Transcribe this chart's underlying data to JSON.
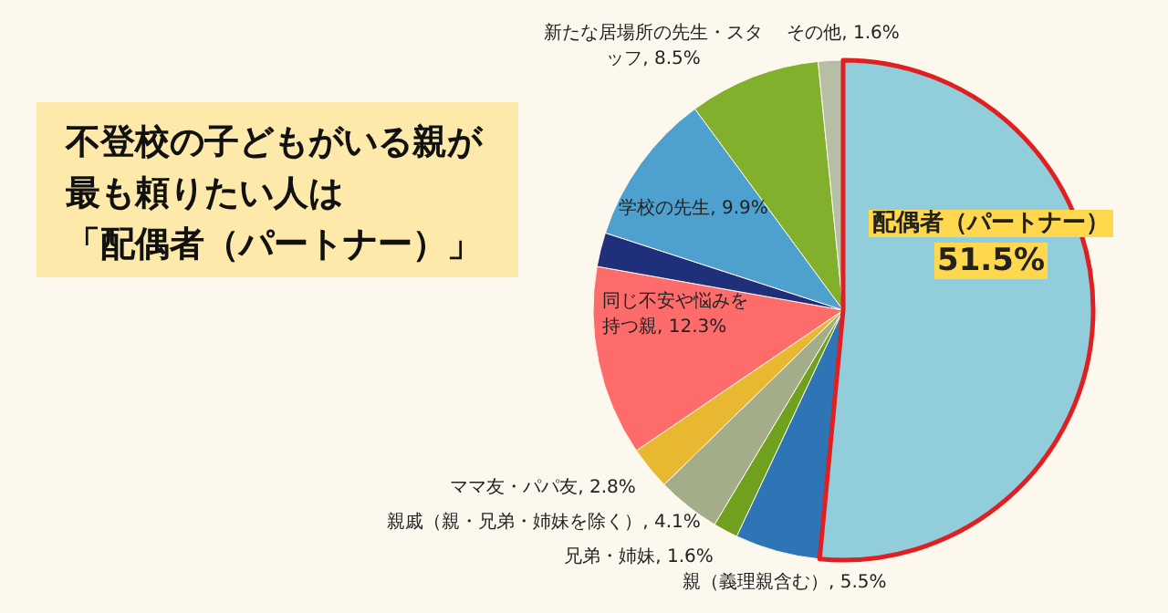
{
  "chart_data": {
    "type": "pie",
    "title": "不登校の子どもがいる親が最も頼りたい人は",
    "subtitle": "「配偶者（パートナー）」",
    "categories": [
      "配偶者（パートナー）",
      "親（義理親含む）",
      "兄弟・姉妹",
      "親戚（親・兄弟・姉妹を除く）",
      "ママ友・パパ友",
      "同じ不安や悩みを持つ親",
      null,
      "学校の先生",
      "新たな居場所の先生・スタッフ",
      "その他"
    ],
    "values": [
      51.5,
      5.5,
      1.6,
      4.1,
      2.8,
      12.3,
      2.2,
      9.9,
      8.5,
      1.6
    ],
    "value_labels": [
      "51.5%",
      "5.5%",
      "1.6%",
      "4.1%",
      "2.8%",
      "12.3%",
      null,
      "9.9%",
      "8.5%",
      "1.6%"
    ],
    "colors": [
      "#92cddc",
      "#2e75b6",
      "#6fa01e",
      "#a3ad8a",
      "#e8b830",
      "#fd6b6b",
      "#1f2f7a",
      "#4ea0cf",
      "#83b02c",
      "#b6bfa6"
    ]
  }
}
